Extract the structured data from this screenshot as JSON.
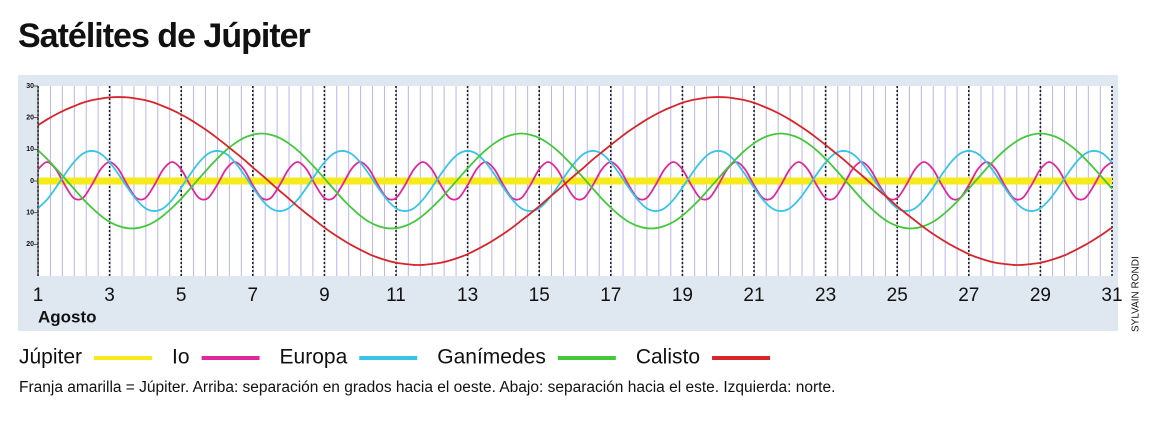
{
  "chart_data": {
    "type": "line",
    "title": "Satélites de Júpiter",
    "xlabel": "Agosto",
    "note": "Franja amarilla = Júpiter. Arriba: separación en grados hacia el oeste. Abajo: separación hacia el este. Izquierda: norte.",
    "credit": "SYLVAIN RONDI",
    "xlim": [
      1,
      31
    ],
    "xticks": [
      1,
      3,
      5,
      7,
      9,
      11,
      13,
      15,
      17,
      19,
      21,
      23,
      25,
      27,
      29,
      31
    ],
    "ylim": [
      -30,
      30
    ],
    "yticks": [
      30,
      20,
      10,
      0,
      {
        "value": -10,
        "label": "10"
      },
      {
        "value": -20,
        "label": "20"
      }
    ],
    "grid": true,
    "band": {
      "name": "Júpiter",
      "color": "#f7ea1a",
      "value": 0
    },
    "x": [
      1,
      1.25,
      1.5,
      1.75,
      2,
      2.25,
      2.5,
      2.75,
      3,
      3.25,
      3.5,
      3.75,
      4,
      4.25,
      4.5,
      4.75,
      5,
      5.25,
      5.5,
      5.75,
      6,
      6.25,
      6.5,
      6.75,
      7,
      7.25,
      7.5,
      7.75,
      8,
      8.25,
      8.5,
      8.75,
      9,
      9.25,
      9.5,
      9.75,
      10,
      10.25,
      10.5,
      10.75,
      11,
      11.25,
      11.5,
      11.75,
      12,
      12.25,
      12.5,
      12.75,
      13,
      13.25,
      13.5,
      13.75,
      14,
      14.25,
      14.5,
      14.75,
      15,
      15.25,
      15.5,
      15.75,
      16,
      16.25,
      16.5,
      16.75,
      17,
      17.25,
      17.5,
      17.75,
      18,
      18.25,
      18.5,
      18.75,
      19,
      19.25,
      19.5,
      19.75,
      20,
      20.25,
      20.5,
      20.75,
      21,
      21.25,
      21.5,
      21.75,
      22,
      22.25,
      22.5,
      22.75,
      23,
      23.25,
      23.5,
      23.75,
      24,
      24.25,
      24.5,
      24.75,
      25,
      25.25,
      25.5,
      25.75,
      26,
      26.25,
      26.5,
      26.75,
      27,
      27.25,
      27.5,
      27.75,
      28,
      28.25,
      28.5,
      28.75,
      29,
      29.25,
      29.5,
      29.75,
      30,
      30.25,
      30.5,
      30.75,
      31
    ],
    "series": [
      {
        "name": "Io",
        "color": "#e0289a",
        "values": [
          3.7,
          6,
          3.7,
          -1.3,
          -5.4,
          -5.4,
          -1.3,
          3.7,
          6,
          3.7,
          -1.3,
          -5.4,
          -5.4,
          -1.3,
          3.7,
          6,
          3.7,
          -1.3,
          -5.4,
          -5.4,
          -1.3,
          3.7,
          6,
          3.7,
          -1.3,
          -5.4,
          -5.4,
          -1.3,
          3.7,
          6,
          3.7,
          -1.3,
          -5.4,
          -5.4,
          -1.3,
          3.7,
          6,
          3.7,
          -1.3,
          -5.4,
          -5.4,
          -1.3,
          3.7,
          6,
          3.7,
          -1.3,
          -5.4,
          -5.4,
          -1.3,
          3.7,
          6,
          3.7,
          -1.3,
          -5.4,
          -5.4,
          -1.3,
          3.7,
          6,
          3.7,
          -1.3,
          -5.4,
          -5.4,
          -1.3,
          3.7,
          6,
          3.7,
          -1.3,
          -5.4,
          -5.4,
          -1.3,
          3.7,
          6,
          3.7,
          -1.3,
          -5.4,
          -5.4,
          -1.3,
          3.7,
          6,
          3.7,
          -1.3,
          -5.4,
          -5.4,
          -1.3,
          3.7,
          6,
          3.7,
          -1.3,
          -5.4,
          -5.4,
          -1.3,
          3.7,
          6,
          3.7,
          -1.3,
          -5.4,
          -5.4,
          -1.3,
          3.7,
          6,
          3.7,
          -1.3,
          -5.4,
          -5.4,
          -1.3,
          3.7,
          6,
          3.7,
          -1.3,
          -5.4,
          -5.4,
          -1.3,
          3.7,
          6,
          3.7,
          -1.3,
          -5.4,
          -5.4,
          -1.3,
          3.7,
          6
        ]
      },
      {
        "name": "Europa",
        "color": "#38c4e6",
        "values": [
          -8.6,
          -5.9,
          -2.1,
          2.1,
          5.9,
          8.6,
          9.5,
          8.6,
          5.9,
          2.1,
          -2.1,
          -5.9,
          -8.6,
          -9.5,
          -8.6,
          -5.9,
          -2.1,
          2.1,
          5.9,
          8.6,
          9.5,
          8.6,
          5.9,
          2.1,
          -2.1,
          -5.9,
          -8.6,
          -9.5,
          -8.6,
          -5.9,
          -2.1,
          2.1,
          5.9,
          8.6,
          9.5,
          8.6,
          5.9,
          2.1,
          -2.1,
          -5.9,
          -8.6,
          -9.5,
          -8.6,
          -5.9,
          -2.1,
          2.1,
          5.9,
          8.6,
          9.5,
          8.6,
          5.9,
          2.1,
          -2.1,
          -5.9,
          -8.6,
          -9.5,
          -8.6,
          -5.9,
          -2.1,
          2.1,
          5.9,
          8.6,
          9.5,
          8.6,
          5.9,
          2.1,
          -2.1,
          -5.9,
          -8.6,
          -9.5,
          -8.6,
          -5.9,
          -2.1,
          2.1,
          5.9,
          8.6,
          9.5,
          8.6,
          5.9,
          2.1,
          -2.1,
          -5.9,
          -8.6,
          -9.5,
          -8.6,
          -5.9,
          -2.1,
          2.1,
          5.9,
          8.6,
          9.5,
          8.6,
          5.9,
          2.1,
          -2.1,
          -5.9,
          -8.6,
          -9.5,
          -8.6,
          -5.9,
          -2.1,
          2.1,
          5.9,
          8.6,
          9.5,
          8.6,
          5.9,
          2.1,
          -2.1,
          -5.9,
          -8.6,
          -9.5,
          -8.6,
          -5.9,
          -2.1,
          2.1,
          5.9,
          8.6,
          9.5,
          8.6,
          5.9
        ]
      },
      {
        "name": "Ganímedes",
        "color": "#44c83a",
        "values": [
          9.7,
          7.0,
          4.0,
          0.8,
          -2.4,
          -5.6,
          -8.4,
          -10.9,
          -12.9,
          -14.2,
          -14.9,
          -14.9,
          -14.2,
          -12.9,
          -10.9,
          -8.4,
          -5.6,
          -2.4,
          0.8,
          4.0,
          7.0,
          9.7,
          11.9,
          13.6,
          14.6,
          15,
          14.6,
          13.6,
          11.9,
          9.7,
          7.0,
          4.0,
          0.8,
          -2.4,
          -5.6,
          -8.4,
          -10.9,
          -12.9,
          -14.2,
          -14.9,
          -14.9,
          -14.2,
          -12.9,
          -10.9,
          -8.4,
          -5.6,
          -2.4,
          0.8,
          4.0,
          7.0,
          9.7,
          11.9,
          13.6,
          14.6,
          15,
          14.6,
          13.6,
          11.9,
          9.7,
          7.0,
          4.0,
          0.8,
          -2.4,
          -5.6,
          -8.4,
          -10.9,
          -12.9,
          -14.2,
          -14.9,
          -14.9,
          -14.2,
          -12.9,
          -10.9,
          -8.4,
          -5.6,
          -2.4,
          0.8,
          4.0,
          7.0,
          9.7,
          11.9,
          13.6,
          14.6,
          15,
          14.6,
          13.6,
          11.9,
          9.7,
          7.0,
          4.0,
          0.8,
          -2.4,
          -5.6,
          -8.4,
          -10.9,
          -12.9,
          -14.2,
          -14.9,
          -14.9,
          -14.2,
          -12.9,
          -10.9,
          -8.4,
          -5.6,
          -2.4,
          0.8,
          4.0,
          7.0,
          9.7,
          11.9,
          13.6,
          14.6,
          15,
          14.6,
          13.6,
          11.9,
          9.7,
          7.0,
          4.0,
          0.8,
          -2.4
        ]
      },
      {
        "name": "Calisto",
        "color": "#d6262a",
        "values": [
          17.6,
          19.4,
          21.0,
          22.4,
          23.6,
          24.7,
          25.5,
          26.0,
          26.4,
          26.5,
          26.4,
          26.0,
          25.5,
          24.7,
          23.6,
          22.4,
          21.0,
          19.4,
          17.6,
          15.7,
          13.6,
          11.4,
          9.1,
          6.8,
          4.3,
          1.9,
          -0.6,
          -3.1,
          -5.5,
          -8.0,
          -10.3,
          -12.5,
          -14.7,
          -16.7,
          -18.5,
          -20.2,
          -21.7,
          -23.1,
          -24.2,
          -25.1,
          -25.8,
          -26.2,
          -26.5,
          -26.5,
          -26.2,
          -25.8,
          -25.1,
          -24.2,
          -23.1,
          -21.7,
          -20.2,
          -18.5,
          -16.7,
          -14.7,
          -12.5,
          -10.3,
          -8.0,
          -5.5,
          -3.1,
          -0.6,
          1.9,
          4.3,
          6.8,
          9.1,
          11.4,
          13.6,
          15.7,
          17.6,
          19.4,
          21.0,
          22.4,
          23.6,
          24.7,
          25.5,
          26.0,
          26.4,
          26.5,
          26.4,
          26.0,
          25.5,
          24.7,
          23.6,
          22.4,
          21.0,
          19.4,
          17.6,
          15.7,
          13.6,
          11.4,
          9.1,
          6.8,
          4.3,
          1.9,
          -0.6,
          -3.1,
          -5.5,
          -8.0,
          -10.3,
          -12.5,
          -14.7,
          -16.7,
          -18.5,
          -20.2,
          -21.7,
          -23.1,
          -24.2,
          -25.1,
          -25.8,
          -26.2,
          -26.5,
          -26.5,
          -26.2,
          -25.8,
          -25.1,
          -24.2,
          -23.1,
          -21.7,
          -20.2,
          -18.5,
          -16.7,
          -14.7
        ]
      }
    ]
  }
}
